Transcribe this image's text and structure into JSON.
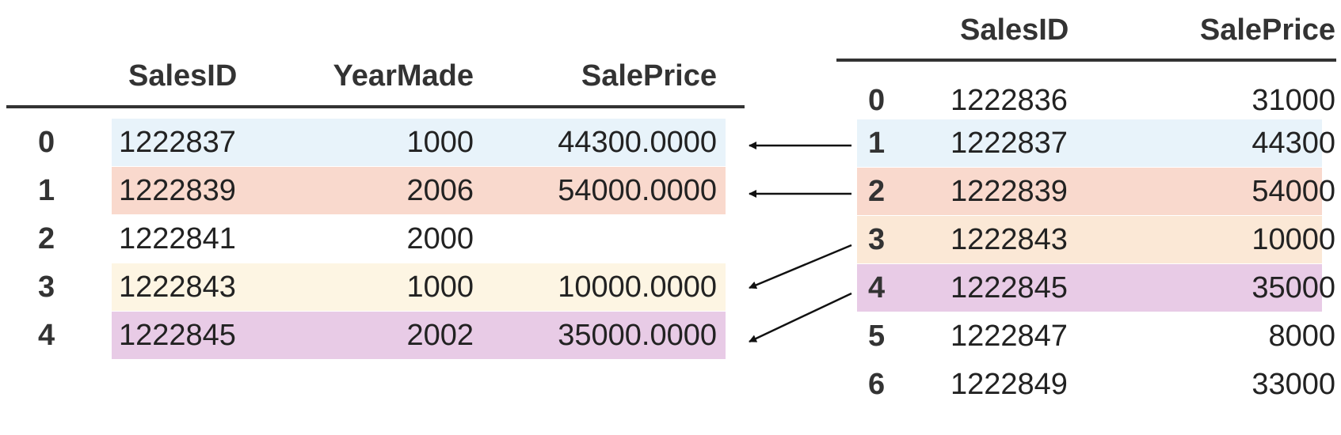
{
  "left_table": {
    "columns": [
      "SalesID",
      "YearMade",
      "SalePrice"
    ],
    "rows": [
      {
        "index": "0",
        "SalesID": "1222837",
        "YearMade": "1000",
        "SalePrice": "44300.0000",
        "highlight": "#e8f3fa"
      },
      {
        "index": "1",
        "SalesID": "1222839",
        "YearMade": "2006",
        "SalePrice": "54000.0000",
        "highlight": "#f9d9cd"
      },
      {
        "index": "2",
        "SalesID": "1222841",
        "YearMade": "2000",
        "SalePrice": "",
        "highlight": ""
      },
      {
        "index": "3",
        "SalesID": "1222843",
        "YearMade": "1000",
        "SalePrice": "10000.0000",
        "highlight": "#fdf5e3"
      },
      {
        "index": "4",
        "SalesID": "1222845",
        "YearMade": "2002",
        "SalePrice": "35000.0000",
        "highlight": "#e8cbe6"
      }
    ]
  },
  "right_table": {
    "columns": [
      "SalesID",
      "SalePrice"
    ],
    "rows": [
      {
        "index": "0",
        "SalesID": "1222836",
        "SalePrice": "31000",
        "highlight": ""
      },
      {
        "index": "1",
        "SalesID": "1222837",
        "SalePrice": "44300",
        "highlight": "#e8f3fa"
      },
      {
        "index": "2",
        "SalesID": "1222839",
        "SalePrice": "54000",
        "highlight": "#f9d9cd"
      },
      {
        "index": "3",
        "SalesID": "1222843",
        "SalePrice": "10000",
        "highlight": "#fbe8d6"
      },
      {
        "index": "4",
        "SalesID": "1222845",
        "SalePrice": "35000",
        "highlight": "#e8cbe6"
      },
      {
        "index": "5",
        "SalesID": "1222847",
        "SalePrice": "8000",
        "highlight": ""
      },
      {
        "index": "6",
        "SalesID": "1222849",
        "SalePrice": "33000",
        "highlight": ""
      }
    ]
  },
  "arrows": [
    {
      "from_right_row": "1",
      "to_left_row": "0"
    },
    {
      "from_right_row": "2",
      "to_left_row": "1"
    },
    {
      "from_right_row": "3",
      "to_left_row": "3"
    },
    {
      "from_right_row": "4",
      "to_left_row": "4"
    }
  ]
}
